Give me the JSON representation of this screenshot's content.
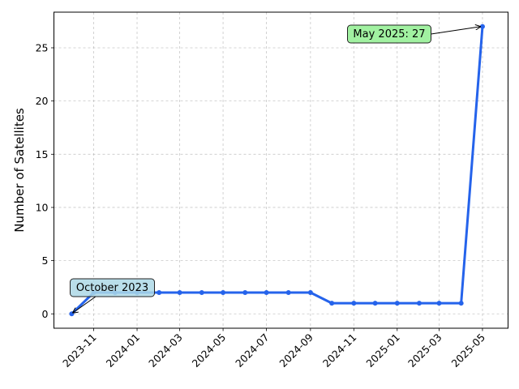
{
  "chart_data": {
    "type": "line",
    "xlabel": "",
    "ylabel": "Number of Satellites",
    "x": [
      "2023-10",
      "2023-11",
      "2023-12",
      "2024-01",
      "2024-02",
      "2024-03",
      "2024-04",
      "2024-05",
      "2024-06",
      "2024-07",
      "2024-08",
      "2024-09",
      "2024-10",
      "2024-11",
      "2024-12",
      "2025-01",
      "2025-02",
      "2025-03",
      "2025-04",
      "2025-05"
    ],
    "series": [
      {
        "name": "",
        "values": [
          0,
          2,
          2,
          2,
          2,
          2,
          2,
          2,
          2,
          2,
          2,
          2,
          1,
          1,
          1,
          1,
          1,
          1,
          1,
          27
        ],
        "color": "#2563eb"
      }
    ],
    "x_ticks": [
      "2023-11",
      "2024-01",
      "2024-03",
      "2024-05",
      "2024-07",
      "2024-09",
      "2024-11",
      "2025-01",
      "2025-03",
      "2025-05"
    ],
    "y_ticks": [
      0,
      5,
      10,
      15,
      20,
      25
    ],
    "ylim": [
      -1.35,
      28.35
    ],
    "xlim": [
      "2023-09-06",
      "2025-06-06"
    ],
    "grid": true,
    "annotations": [
      {
        "text": "October 2023",
        "x": "2023-10",
        "y": 0,
        "box_color": "#add8e6"
      },
      {
        "text": "May 2025: 27",
        "x": "2025-05",
        "y": 27,
        "box_color": "#90ee90"
      }
    ]
  }
}
